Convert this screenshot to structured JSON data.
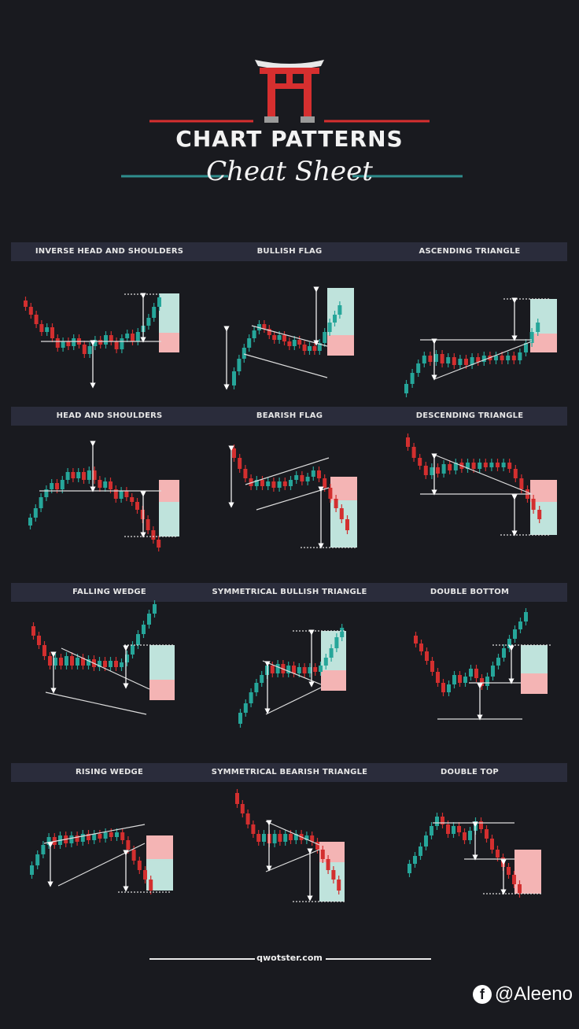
{
  "header": {
    "title": "CHART PATTERNS",
    "subtitle": "Cheat Sheet"
  },
  "colors": {
    "background": "#191a1f",
    "bull": "#26a69a",
    "bear": "#d32f2f",
    "accent_red": "#d62f2f",
    "accent_teal": "#2f8d8d",
    "target_green": "#bfe3dc",
    "target_red": "#f4b4b4"
  },
  "rows": [
    {
      "patterns": [
        "INVERSE HEAD AND SHOULDERS",
        "BULLISH FLAG",
        "ASCENDING TRIANGLE"
      ]
    },
    {
      "patterns": [
        "HEAD AND SHOULDERS",
        "BEARISH FLAG",
        "DESCENDING TRIANGLE"
      ]
    },
    {
      "patterns": [
        "FALLING WEDGE",
        "SYMMETRICAL BULLISH  TRIANGLE",
        "DOUBLE BOTTOM"
      ]
    },
    {
      "patterns": [
        "RISING WEDGE",
        "SYMMETRICAL  BEARISH TRIANGLE",
        "DOUBLE  TOP"
      ]
    }
  ],
  "footer": {
    "site": "qwotster.com",
    "watermark": "@Aleeno",
    "watermark_icon": "facebook-icon"
  }
}
